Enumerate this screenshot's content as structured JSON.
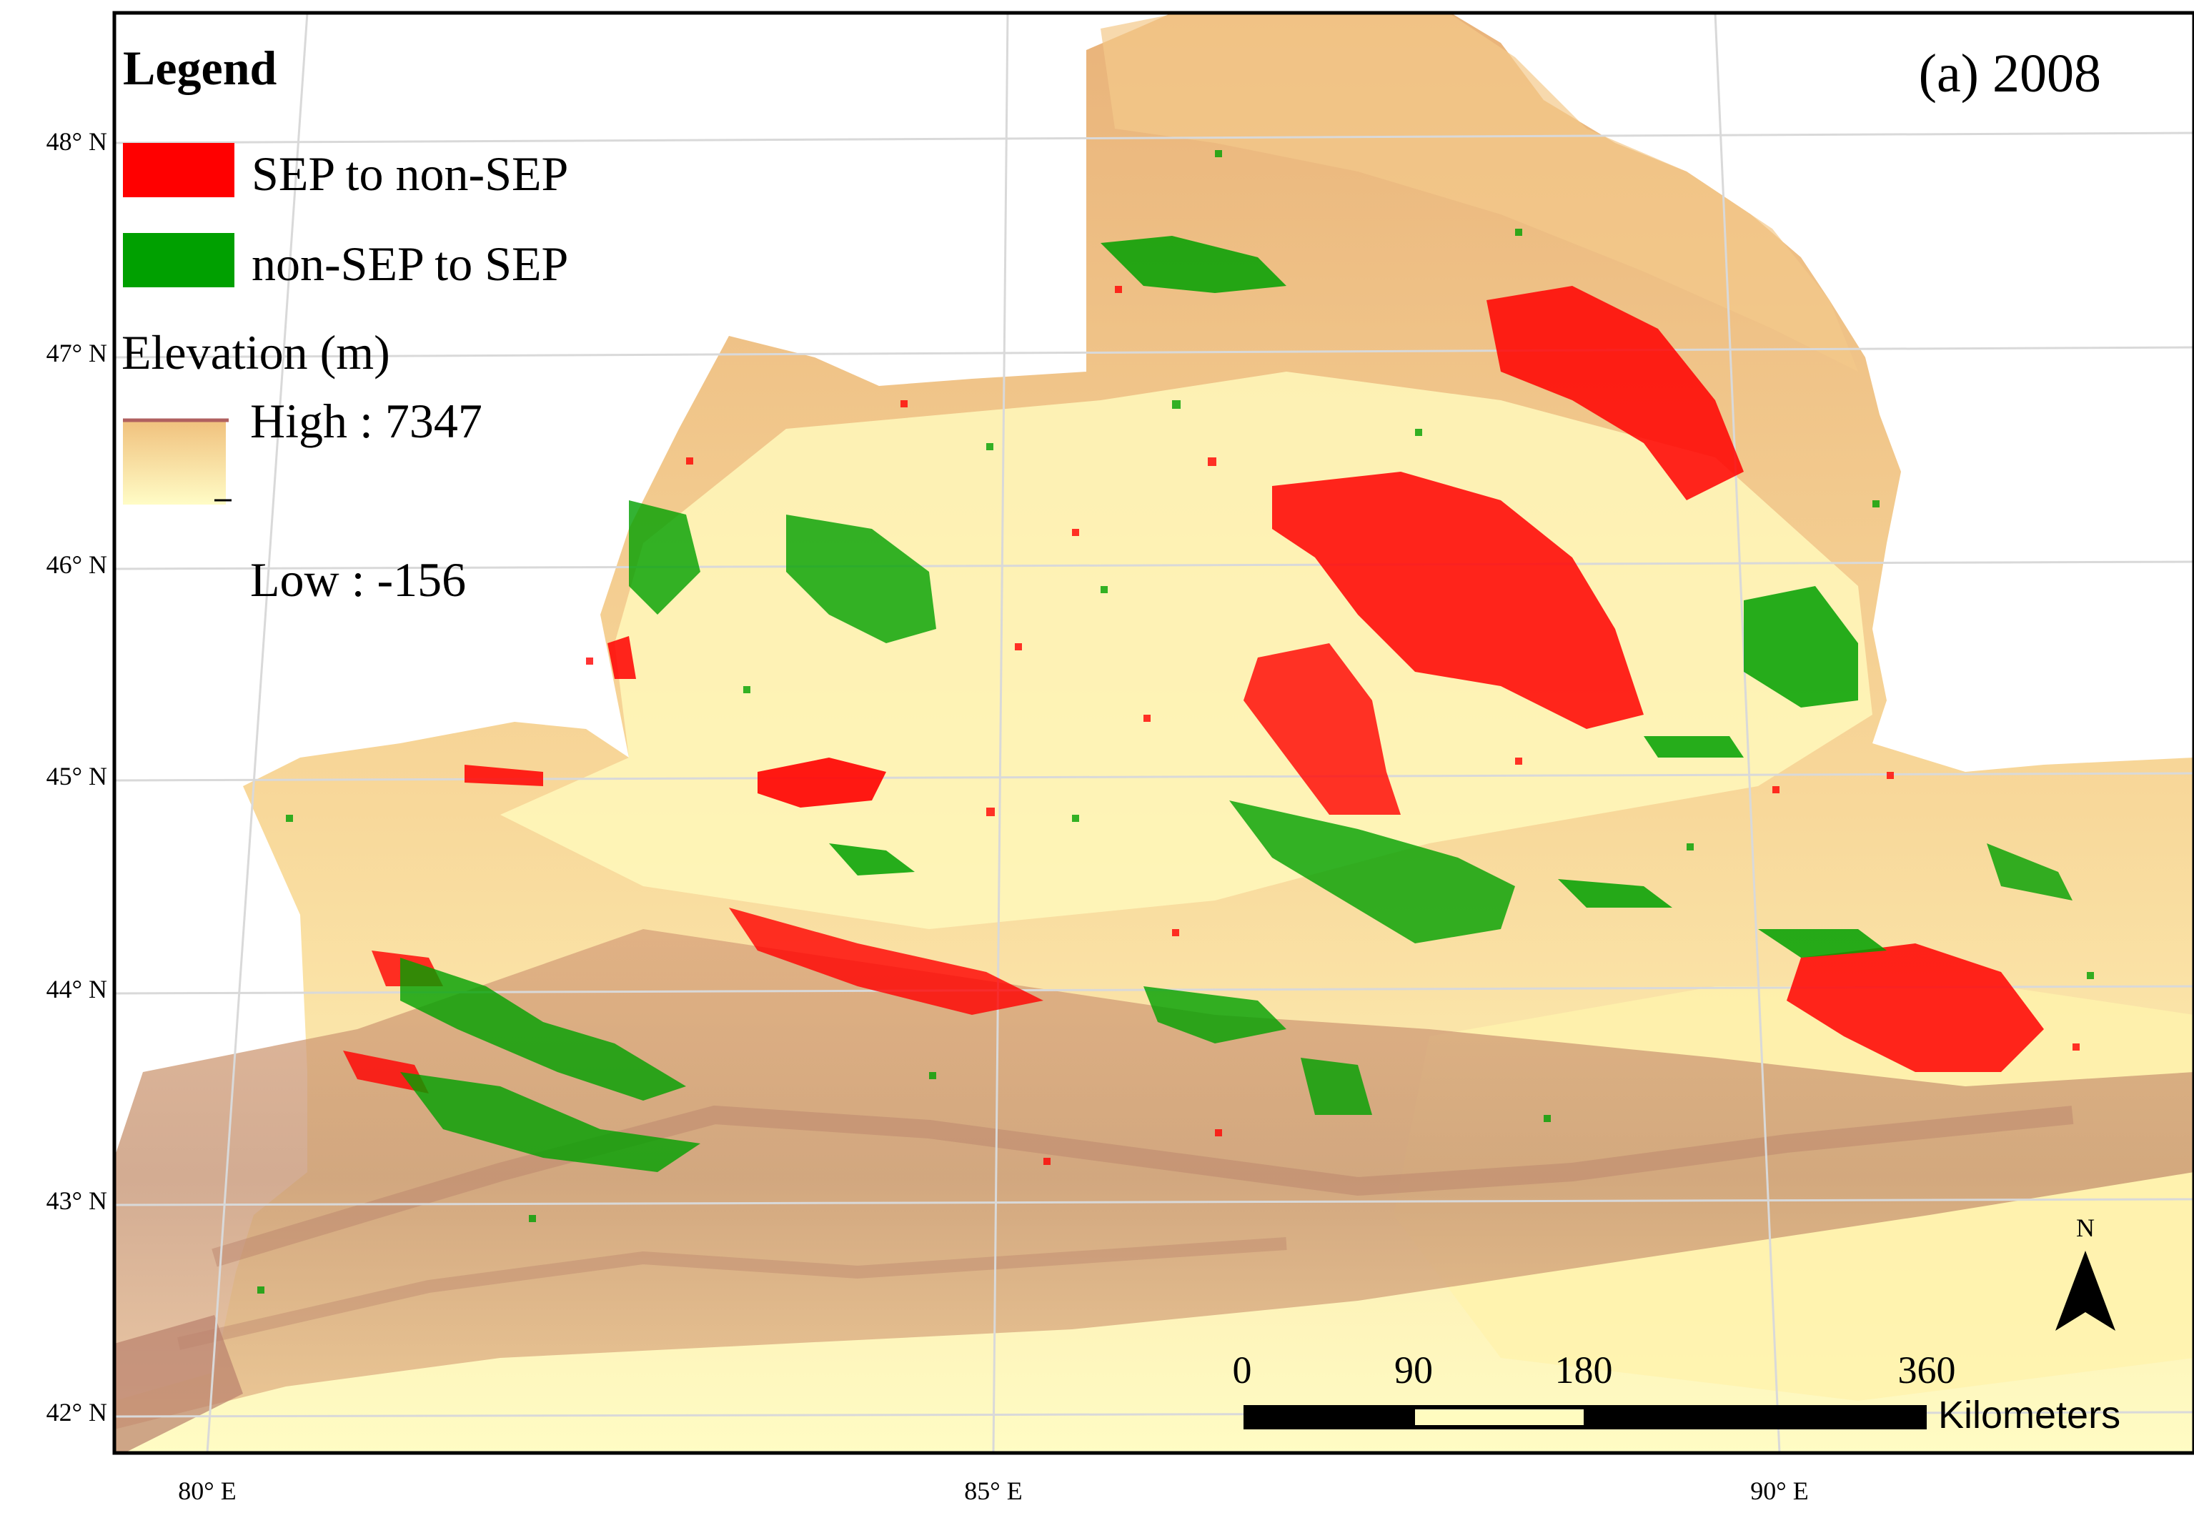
{
  "panel_label": "(a) 2008",
  "legend": {
    "title": "Legend",
    "items": [
      {
        "label": "SEP to non-SEP",
        "color": "#ff0000"
      },
      {
        "label": "non-SEP to SEP",
        "color": "#00a000"
      }
    ],
    "elevation": {
      "title": "Elevation (m)",
      "high_label": "High : 7347",
      "low_label": "Low : -156",
      "high_color": "#f2c27c",
      "low_color": "#fffcc4"
    }
  },
  "graticule": {
    "lat_labels": [
      "48° N",
      "47° N",
      "46° N",
      "45° N",
      "44° N",
      "43° N",
      "42° N"
    ],
    "lon_labels": [
      "80° E",
      "85° E",
      "90° E"
    ]
  },
  "scale_bar": {
    "ticks": [
      "0",
      "90",
      "180",
      "360"
    ],
    "unit": "Kilometers"
  },
  "north_arrow": {
    "label": "N"
  },
  "colors": {
    "lowland": "#fff7b8",
    "foothill": "#f0c484",
    "mountain": "#c8906c",
    "sep_loss": "#ff0000",
    "sep_gain": "#00a000",
    "gridline": "#d9d9d9"
  }
}
